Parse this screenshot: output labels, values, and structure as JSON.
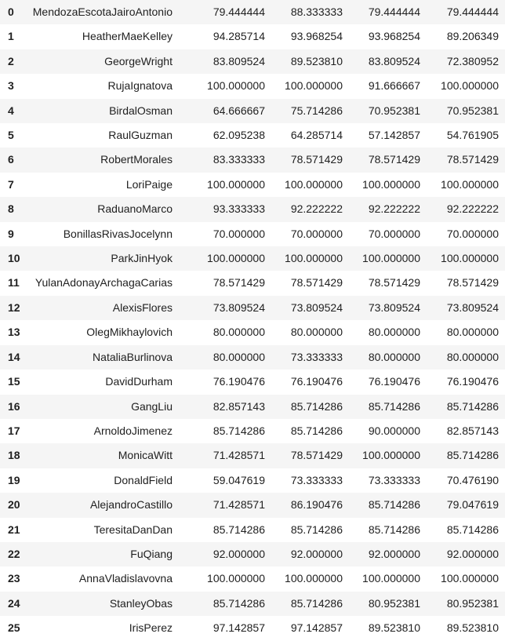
{
  "table": {
    "rows": [
      {
        "index": "0",
        "name": "MendozaEscotaJairoAntonio",
        "v1": "79.444444",
        "v2": "88.333333",
        "v3": "79.444444",
        "v4": "79.444444"
      },
      {
        "index": "1",
        "name": "HeatherMaeKelley",
        "v1": "94.285714",
        "v2": "93.968254",
        "v3": "93.968254",
        "v4": "89.206349"
      },
      {
        "index": "2",
        "name": "GeorgeWright",
        "v1": "83.809524",
        "v2": "89.523810",
        "v3": "83.809524",
        "v4": "72.380952"
      },
      {
        "index": "3",
        "name": "RujaIgnatova",
        "v1": "100.000000",
        "v2": "100.000000",
        "v3": "91.666667",
        "v4": "100.000000"
      },
      {
        "index": "4",
        "name": "BirdalOsman",
        "v1": "64.666667",
        "v2": "75.714286",
        "v3": "70.952381",
        "v4": "70.952381"
      },
      {
        "index": "5",
        "name": "RaulGuzman",
        "v1": "62.095238",
        "v2": "64.285714",
        "v3": "57.142857",
        "v4": "54.761905"
      },
      {
        "index": "6",
        "name": "RobertMorales",
        "v1": "83.333333",
        "v2": "78.571429",
        "v3": "78.571429",
        "v4": "78.571429"
      },
      {
        "index": "7",
        "name": "LoriPaige",
        "v1": "100.000000",
        "v2": "100.000000",
        "v3": "100.000000",
        "v4": "100.000000"
      },
      {
        "index": "8",
        "name": "RaduanoMarco",
        "v1": "93.333333",
        "v2": "92.222222",
        "v3": "92.222222",
        "v4": "92.222222"
      },
      {
        "index": "9",
        "name": "BonillasRivasJocelynn",
        "v1": "70.000000",
        "v2": "70.000000",
        "v3": "70.000000",
        "v4": "70.000000"
      },
      {
        "index": "10",
        "name": "ParkJinHyok",
        "v1": "100.000000",
        "v2": "100.000000",
        "v3": "100.000000",
        "v4": "100.000000"
      },
      {
        "index": "11",
        "name": "YulanAdonayArchagaCarias",
        "v1": "78.571429",
        "v2": "78.571429",
        "v3": "78.571429",
        "v4": "78.571429"
      },
      {
        "index": "12",
        "name": "AlexisFlores",
        "v1": "73.809524",
        "v2": "73.809524",
        "v3": "73.809524",
        "v4": "73.809524"
      },
      {
        "index": "13",
        "name": "OlegMikhaylovich",
        "v1": "80.000000",
        "v2": "80.000000",
        "v3": "80.000000",
        "v4": "80.000000"
      },
      {
        "index": "14",
        "name": "NataliaBurlinova",
        "v1": "80.000000",
        "v2": "73.333333",
        "v3": "80.000000",
        "v4": "80.000000"
      },
      {
        "index": "15",
        "name": "DavidDurham",
        "v1": "76.190476",
        "v2": "76.190476",
        "v3": "76.190476",
        "v4": "76.190476"
      },
      {
        "index": "16",
        "name": "GangLiu",
        "v1": "82.857143",
        "v2": "85.714286",
        "v3": "85.714286",
        "v4": "85.714286"
      },
      {
        "index": "17",
        "name": "ArnoldoJimenez",
        "v1": "85.714286",
        "v2": "85.714286",
        "v3": "90.000000",
        "v4": "82.857143"
      },
      {
        "index": "18",
        "name": "MonicaWitt",
        "v1": "71.428571",
        "v2": "78.571429",
        "v3": "100.000000",
        "v4": "85.714286"
      },
      {
        "index": "19",
        "name": "DonaldField",
        "v1": "59.047619",
        "v2": "73.333333",
        "v3": "73.333333",
        "v4": "70.476190"
      },
      {
        "index": "20",
        "name": "AlejandroCastillo",
        "v1": "71.428571",
        "v2": "86.190476",
        "v3": "85.714286",
        "v4": "79.047619"
      },
      {
        "index": "21",
        "name": "TeresitaDanDan",
        "v1": "85.714286",
        "v2": "85.714286",
        "v3": "85.714286",
        "v4": "85.714286"
      },
      {
        "index": "22",
        "name": "FuQiang",
        "v1": "92.000000",
        "v2": "92.000000",
        "v3": "92.000000",
        "v4": "92.000000"
      },
      {
        "index": "23",
        "name": "AnnaVladislavovna",
        "v1": "100.000000",
        "v2": "100.000000",
        "v3": "100.000000",
        "v4": "100.000000"
      },
      {
        "index": "24",
        "name": "StanleyObas",
        "v1": "85.714286",
        "v2": "85.714286",
        "v3": "80.952381",
        "v4": "80.952381"
      },
      {
        "index": "25",
        "name": "IrisPerez",
        "v1": "97.142857",
        "v2": "97.142857",
        "v3": "89.523810",
        "v4": "89.523810"
      }
    ]
  },
  "colors": {
    "stripe": "#f5f5f5",
    "background": "#ffffff",
    "text": "#212121"
  }
}
